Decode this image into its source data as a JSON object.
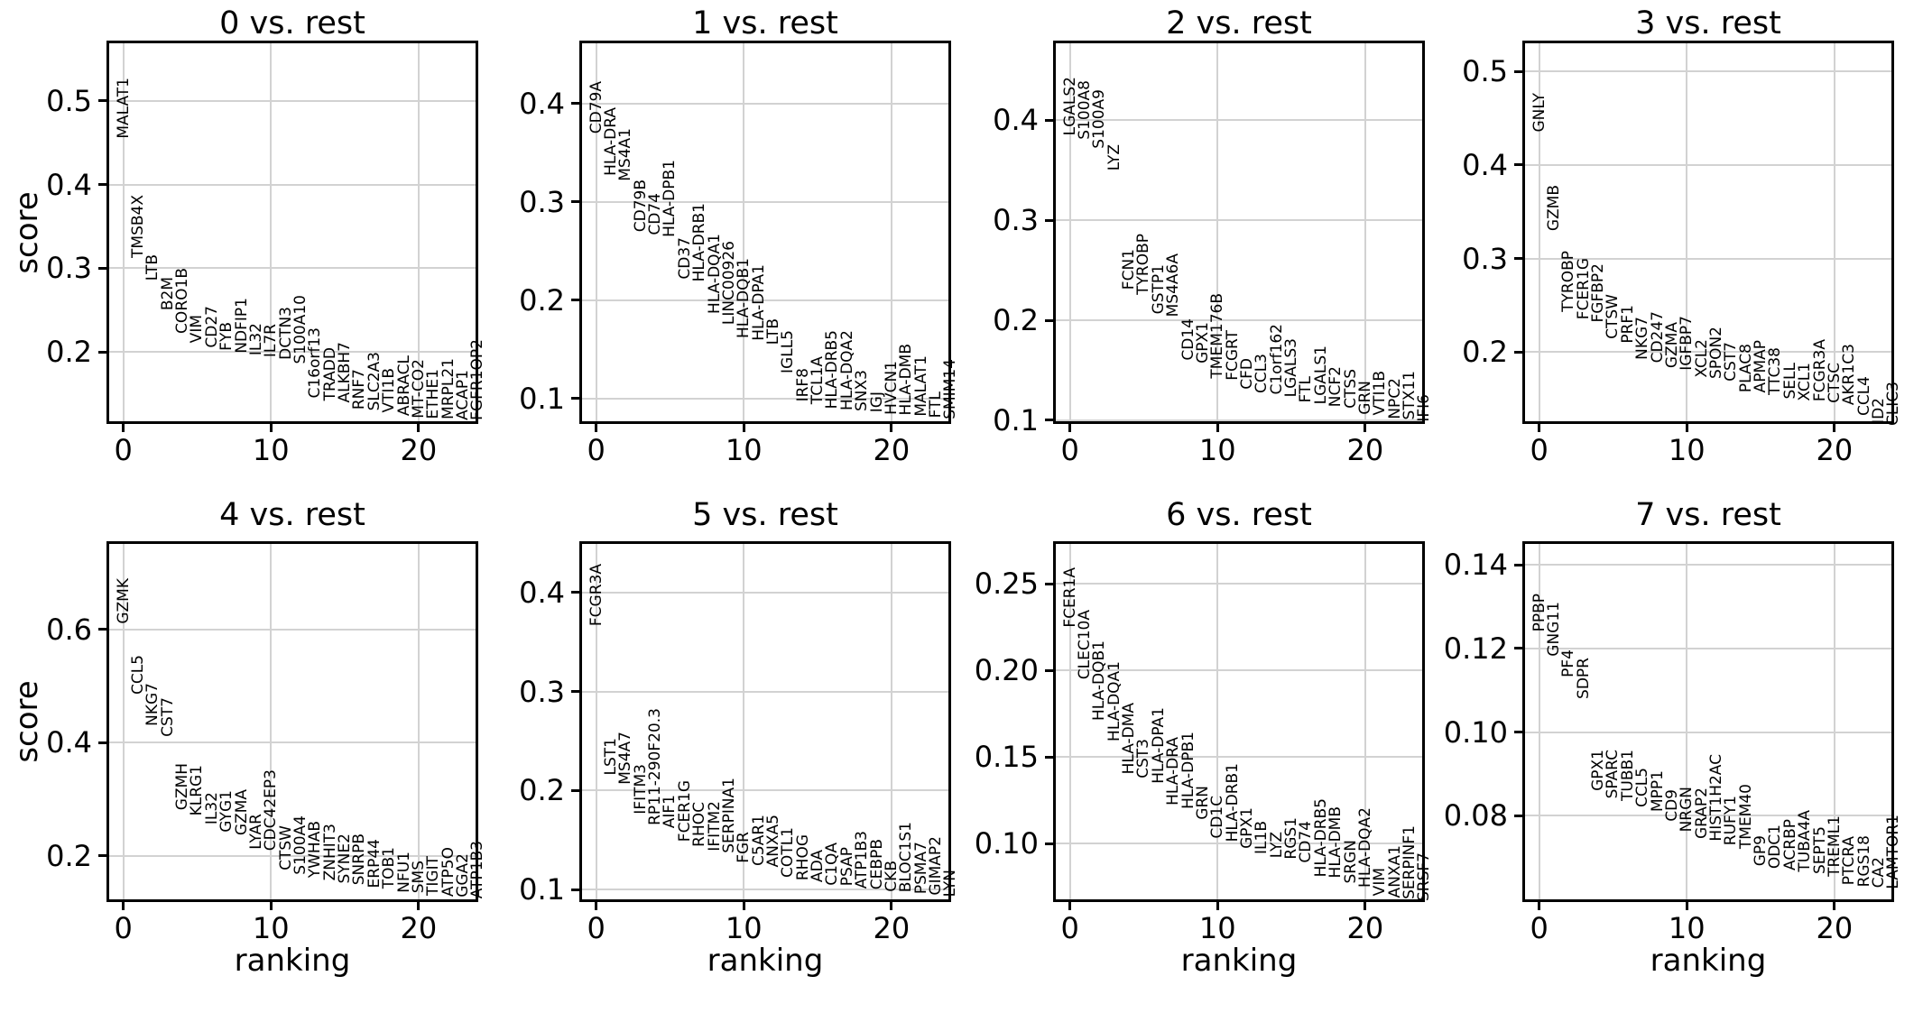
{
  "figure": {
    "ylabel": "score",
    "xlabel": "ranking",
    "colors": {
      "background": "#ffffff",
      "text": "#000000",
      "grid": "#d2d2d2",
      "spine": "#000000"
    }
  },
  "chart_data": [
    {
      "type": "scatter",
      "title": "0 vs. rest",
      "xlabel": "ranking",
      "ylabel": "score",
      "xticks": [
        0,
        10,
        20
      ],
      "xlim": [
        -0.96,
        23.86
      ],
      "yticks": {
        "values": [
          0.2,
          0.3,
          0.4,
          0.5
        ],
        "labels": [
          "0.2",
          "0.3",
          "0.4",
          "0.5"
        ]
      },
      "ylim": [
        0.117,
        0.569
      ],
      "gene_names": [
        "MALAT1",
        "TMSB4X",
        "LTB",
        "B2M",
        "CORO1B",
        "VIM",
        "CD27",
        "FYB",
        "NDFIP1",
        "IL32",
        "IL7R",
        "DCTN3",
        "S100A10",
        "C16orf13",
        "TRADD",
        "ALKBH7",
        "RNF7",
        "SLC2A3",
        "VTI1B",
        "ABRACL",
        "MT-CO2",
        "ETHE1",
        "MRPL21",
        "ACAP1",
        "FGFR1OP2"
      ],
      "scores": [
        0.455,
        0.312,
        0.285,
        0.25,
        0.222,
        0.21,
        0.205,
        0.201,
        0.198,
        0.196,
        0.194,
        0.191,
        0.186,
        0.145,
        0.141,
        0.139,
        0.131,
        0.129,
        0.127,
        0.123,
        0.121,
        0.12,
        0.119,
        0.1185,
        0.118
      ]
    },
    {
      "type": "scatter",
      "title": "1 vs. rest",
      "xlabel": "ranking",
      "ylabel": "score",
      "xticks": [
        0,
        10,
        20
      ],
      "xlim": [
        -0.96,
        23.86
      ],
      "yticks": {
        "values": [
          0.1,
          0.2,
          0.3,
          0.4
        ],
        "labels": [
          "0.1",
          "0.2",
          "0.3",
          "0.4"
        ]
      },
      "ylim": [
        0.077,
        0.461
      ],
      "gene_names": [
        "CD79A",
        "HLA-DRA",
        "MS4A1",
        "CD79B",
        "CD74",
        "HLA-DPB1",
        "CD37",
        "HLA-DRB1",
        "HLA-DQA1",
        "LINC00926",
        "HLA-DQB1",
        "HLA-DPA1",
        "LTB",
        "IGLL5",
        "IRF8",
        "TCL1A",
        "HLA-DRB5",
        "HLA-DQA2",
        "SNX3",
        "IGJ",
        "HVCN1",
        "HLA-DMB",
        "MALAT1",
        "FTL",
        "SMIM14"
      ],
      "scores": [
        0.369,
        0.326,
        0.321,
        0.269,
        0.266,
        0.264,
        0.221,
        0.219,
        0.186,
        0.175,
        0.161,
        0.159,
        0.155,
        0.126,
        0.097,
        0.094,
        0.089,
        0.088,
        0.087,
        0.086,
        0.084,
        0.083,
        0.082,
        0.08,
        0.079
      ]
    },
    {
      "type": "scatter",
      "title": "2 vs. rest",
      "xlabel": "ranking",
      "ylabel": "score",
      "xticks": [
        0,
        10,
        20
      ],
      "xlim": [
        -0.96,
        23.86
      ],
      "yticks": {
        "values": [
          0.1,
          0.2,
          0.3,
          0.4
        ],
        "labels": [
          "0.1",
          "0.2",
          "0.3",
          "0.4"
        ]
      },
      "ylim": [
        0.099,
        0.477
      ],
      "gene_names": [
        "LGALS2",
        "S100A8",
        "S100A9",
        "LYZ",
        "FCN1",
        "TYROBP",
        "GSTP1",
        "MS4A6A",
        "CD14",
        "GPX1",
        "TMEM176B",
        "FCGRT",
        "CFD",
        "CCL3",
        "C1orf162",
        "LGALS3",
        "FTL",
        "LGALS1",
        "NCF2",
        "CTSS",
        "GRN",
        "VTI1B",
        "NPC2",
        "STX11",
        "IFI6"
      ],
      "scores": [
        0.385,
        0.381,
        0.372,
        0.35,
        0.231,
        0.225,
        0.206,
        0.203,
        0.16,
        0.157,
        0.142,
        0.14,
        0.131,
        0.127,
        0.126,
        0.123,
        0.118,
        0.116,
        0.113,
        0.112,
        0.106,
        0.105,
        0.101,
        0.1,
        0.098
      ]
    },
    {
      "type": "scatter",
      "title": "3 vs. rest",
      "xlabel": "ranking",
      "ylabel": "score",
      "xticks": [
        0,
        10,
        20
      ],
      "xlim": [
        -0.96,
        23.86
      ],
      "yticks": {
        "values": [
          0.2,
          0.3,
          0.4,
          0.5
        ],
        "labels": [
          "0.2",
          "0.3",
          "0.4",
          "0.5"
        ]
      },
      "ylim": [
        0.126,
        0.53
      ],
      "gene_names": [
        "GNLY",
        "GZMB",
        "TYROBP",
        "FCER1G",
        "FGFBP2",
        "CTSW",
        "PRF1",
        "NKG7",
        "CD247",
        "GZMA",
        "IGFBP7",
        "XCL2",
        "SPON2",
        "CST7",
        "PLAC8",
        "APMAP",
        "TTC38",
        "SELL",
        "XCL1",
        "FCGR3A",
        "CTSC",
        "AKR1C3",
        "CCL4",
        "ID2",
        "CLIC3"
      ],
      "scores": [
        0.435,
        0.329,
        0.243,
        0.235,
        0.232,
        0.214,
        0.209,
        0.192,
        0.188,
        0.183,
        0.18,
        0.173,
        0.171,
        0.169,
        0.157,
        0.156,
        0.154,
        0.15,
        0.148,
        0.147,
        0.145,
        0.143,
        0.132,
        0.123,
        0.121
      ]
    },
    {
      "type": "scatter",
      "title": "4 vs. rest",
      "xlabel": "ranking",
      "ylabel": "score",
      "xticks": [
        0,
        10,
        20
      ],
      "xlim": [
        -0.96,
        23.86
      ],
      "yticks": {
        "values": [
          0.2,
          0.4,
          0.6
        ],
        "labels": [
          "0.2",
          "0.4",
          "0.6"
        ]
      },
      "ylim": [
        0.123,
        0.751
      ],
      "gene_names": [
        "GZMK",
        "CCL5",
        "NKG7",
        "CST7",
        "GZMH",
        "KLRG1",
        "IL32",
        "GYG1",
        "GZMA",
        "LYAR",
        "CDC42EP3",
        "CTSW",
        "S100A4",
        "YWHAB",
        "ZNHIT3",
        "SYNE2",
        "SNRPB",
        "ERP44",
        "TOB1",
        "NFU1",
        "SMS",
        "TIGIT",
        "ATP5O",
        "GGA2",
        "ATP1B3"
      ],
      "scores": [
        0.61,
        0.485,
        0.43,
        0.41,
        0.281,
        0.27,
        0.255,
        0.241,
        0.236,
        0.211,
        0.209,
        0.175,
        0.166,
        0.161,
        0.156,
        0.151,
        0.148,
        0.143,
        0.141,
        0.135,
        0.133,
        0.13,
        0.127,
        0.126,
        0.125
      ]
    },
    {
      "type": "scatter",
      "title": "5 vs. rest",
      "xlabel": "ranking",
      "ylabel": "score",
      "xticks": [
        0,
        10,
        20
      ],
      "xlim": [
        -0.96,
        23.86
      ],
      "yticks": {
        "values": [
          0.1,
          0.2,
          0.3,
          0.4
        ],
        "labels": [
          "0.1",
          "0.2",
          "0.3",
          "0.4"
        ]
      },
      "ylim": [
        0.09,
        0.449
      ],
      "gene_names": [
        "FCGR3A",
        "LST1",
        "MS4A7",
        "IFITM3",
        "RP11-290F20.3",
        "AIF1",
        "FCER1G",
        "RHOC",
        "IFITM2",
        "SERPINA1",
        "FGR",
        "C5AR1",
        "ANXA5",
        "COTL1",
        "RHOG",
        "ADA",
        "C1QA",
        "PSAP",
        "ATP1B3",
        "CEBPB",
        "CKB",
        "BLOC1S1",
        "PSMA7",
        "GIMAP2",
        "LYN"
      ],
      "scores": [
        0.366,
        0.215,
        0.206,
        0.176,
        0.165,
        0.162,
        0.148,
        0.143,
        0.139,
        0.137,
        0.127,
        0.124,
        0.122,
        0.112,
        0.109,
        0.107,
        0.104,
        0.103,
        0.101,
        0.1,
        0.098,
        0.097,
        0.095,
        0.094,
        0.092
      ]
    },
    {
      "type": "scatter",
      "title": "6 vs. rest",
      "xlabel": "ranking",
      "ylabel": "score",
      "xticks": [
        0,
        10,
        20
      ],
      "xlim": [
        -0.96,
        23.86
      ],
      "yticks": {
        "values": [
          0.1,
          0.15,
          0.2,
          0.25
        ],
        "labels": [
          "0.10",
          "0.15",
          "0.20",
          "0.25"
        ]
      },
      "ylim": [
        0.068,
        0.273
      ],
      "gene_names": [
        "FCER1A",
        "CLEC10A",
        "HLA-DQB1",
        "HLA-DQA1",
        "HLA-DMA",
        "CST3",
        "HLA-DPA1",
        "HLA-DRA",
        "HLA-DPB1",
        "GRN",
        "CD1C",
        "HLA-DRB1",
        "GPX1",
        "IL1B",
        "LYZ",
        "RGS1",
        "CD74",
        "HLA-DRB5",
        "HLA-DMB",
        "SRGN",
        "HLA-DQA2",
        "VIM",
        "ANXA1",
        "SERPINF1",
        "SRSF7"
      ],
      "scores": [
        0.225,
        0.195,
        0.171,
        0.159,
        0.14,
        0.138,
        0.135,
        0.122,
        0.12,
        0.114,
        0.103,
        0.101,
        0.097,
        0.094,
        0.092,
        0.091,
        0.089,
        0.081,
        0.08,
        0.077,
        0.075,
        0.07,
        0.069,
        0.068,
        0.067
      ]
    },
    {
      "type": "scatter",
      "title": "7 vs. rest",
      "xlabel": "ranking",
      "ylabel": "score",
      "xticks": [
        0,
        10,
        20
      ],
      "xlim": [
        -0.96,
        23.86
      ],
      "yticks": {
        "values": [
          0.08,
          0.1,
          0.12,
          0.14
        ],
        "labels": [
          "0.08",
          "0.10",
          "0.12",
          "0.14"
        ]
      },
      "ylim": [
        0.06,
        0.145
      ],
      "gene_names": [
        "PPBP",
        "GNG11",
        "PF4",
        "SDPR",
        "GPX1",
        "SPARC",
        "TUBB1",
        "CCL5",
        "MPP1",
        "CD9",
        "NRGN",
        "GRAP2",
        "HIST1H2AC",
        "RUFY1",
        "TMEM40",
        "GP9",
        "ODC1",
        "ACRBP",
        "TUBA4A",
        "SEPT5",
        "TREML1",
        "PTCRA",
        "RGS18",
        "CA2",
        "LAMTOR1"
      ],
      "scores": [
        0.124,
        0.118,
        0.113,
        0.108,
        0.086,
        0.084,
        0.0835,
        0.082,
        0.081,
        0.0785,
        0.076,
        0.0745,
        0.074,
        0.073,
        0.072,
        0.068,
        0.0672,
        0.0669,
        0.0666,
        0.066,
        0.0655,
        0.0635,
        0.063,
        0.0628,
        0.0625
      ]
    }
  ]
}
